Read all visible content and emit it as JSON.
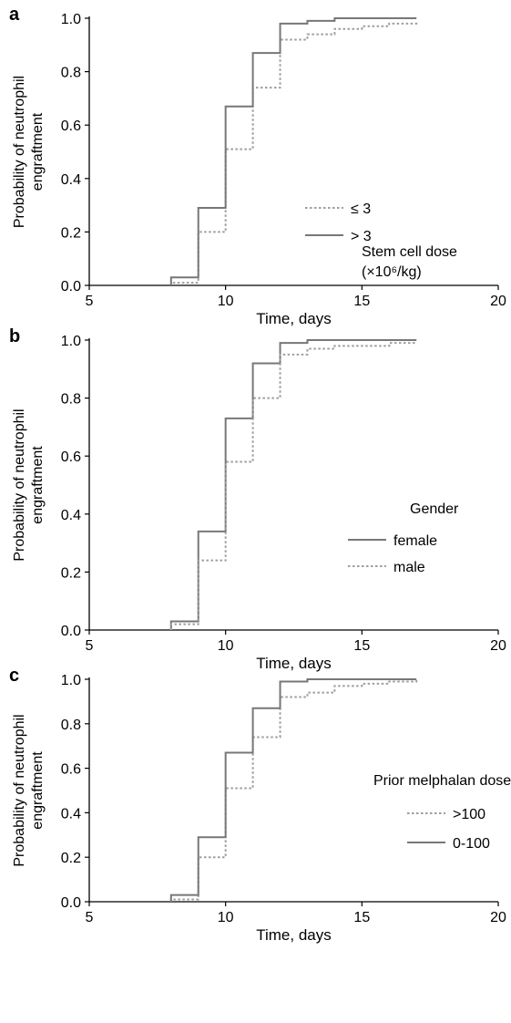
{
  "chart_data": [
    {
      "type": "line",
      "step": true,
      "panel_label": "a",
      "xlabel": "Time, days",
      "ylabel_lines": [
        "Probability of neutrophil",
        "engraftment"
      ],
      "xlim": [
        5,
        20
      ],
      "ylim": [
        0,
        1
      ],
      "xticks": [
        "5",
        "10",
        "15",
        "20"
      ],
      "yticks": [
        "0.0",
        "0.2",
        "0.4",
        "0.6",
        "0.8",
        "1.0"
      ],
      "legend_title": [
        "Stem cell dose",
        "(×10⁶/kg)"
      ],
      "legend_placement": "right",
      "series": [
        {
          "name": "≤ 3",
          "style": "dotted",
          "color": "#9e9e9e",
          "x": [
            8,
            9,
            10,
            11,
            12,
            13,
            14,
            15,
            16,
            17
          ],
          "y": [
            0.01,
            0.2,
            0.51,
            0.74,
            0.92,
            0.94,
            0.96,
            0.97,
            0.98,
            0.99
          ]
        },
        {
          "name": "> 3",
          "style": "solid",
          "color": "#777777",
          "x": [
            8,
            9,
            10,
            11,
            12,
            13,
            14,
            15,
            16,
            17
          ],
          "y": [
            0.03,
            0.29,
            0.67,
            0.87,
            0.98,
            0.99,
            1.0,
            1.0,
            1.0,
            1.0
          ]
        }
      ]
    },
    {
      "type": "line",
      "step": true,
      "panel_label": "b",
      "xlabel": "Time, days",
      "ylabel_lines": [
        "Probability of neutrophil",
        "engraftment"
      ],
      "xlim": [
        5,
        20
      ],
      "ylim": [
        0,
        1
      ],
      "xticks": [
        "5",
        "10",
        "15",
        "20"
      ],
      "yticks": [
        "0.0",
        "0.2",
        "0.4",
        "0.6",
        "0.8",
        "1.0"
      ],
      "legend_title": [
        "Gender"
      ],
      "legend_placement": "right",
      "series": [
        {
          "name": "female",
          "style": "solid",
          "color": "#777777",
          "x": [
            8,
            9,
            10,
            11,
            12,
            13,
            14,
            15,
            16,
            17
          ],
          "y": [
            0.03,
            0.34,
            0.73,
            0.92,
            0.99,
            1.0,
            1.0,
            1.0,
            1.0,
            1.0
          ]
        },
        {
          "name": "male",
          "style": "dotted",
          "color": "#9e9e9e",
          "x": [
            8,
            9,
            10,
            11,
            12,
            13,
            14,
            15,
            16,
            17
          ],
          "y": [
            0.02,
            0.24,
            0.58,
            0.8,
            0.95,
            0.97,
            0.98,
            0.98,
            0.99,
            0.99
          ]
        }
      ]
    },
    {
      "type": "line",
      "step": true,
      "panel_label": "c",
      "xlabel": "Time, days",
      "ylabel_lines": [
        "Probability of neutrophil",
        "engraftment"
      ],
      "xlim": [
        5,
        20
      ],
      "ylim": [
        0,
        1
      ],
      "xticks": [
        "5",
        "10",
        "15",
        "20"
      ],
      "yticks": [
        "0.0",
        "0.2",
        "0.4",
        "0.6",
        "0.8",
        "1.0"
      ],
      "legend_title": [
        "Prior melphalan dose"
      ],
      "legend_placement": "right",
      "series": [
        {
          "name": ">100",
          "style": "dotted",
          "color": "#9e9e9e",
          "x": [
            8,
            9,
            10,
            11,
            12,
            13,
            14,
            15,
            16,
            17
          ],
          "y": [
            0.01,
            0.2,
            0.51,
            0.74,
            0.92,
            0.94,
            0.97,
            0.98,
            0.99,
            1.0
          ]
        },
        {
          "name": "0-100",
          "style": "solid",
          "color": "#777777",
          "x": [
            8,
            9,
            10,
            11,
            12,
            13,
            14,
            15,
            16,
            17
          ],
          "y": [
            0.03,
            0.29,
            0.67,
            0.87,
            0.99,
            1.0,
            1.0,
            1.0,
            1.0,
            1.0
          ]
        }
      ]
    }
  ]
}
